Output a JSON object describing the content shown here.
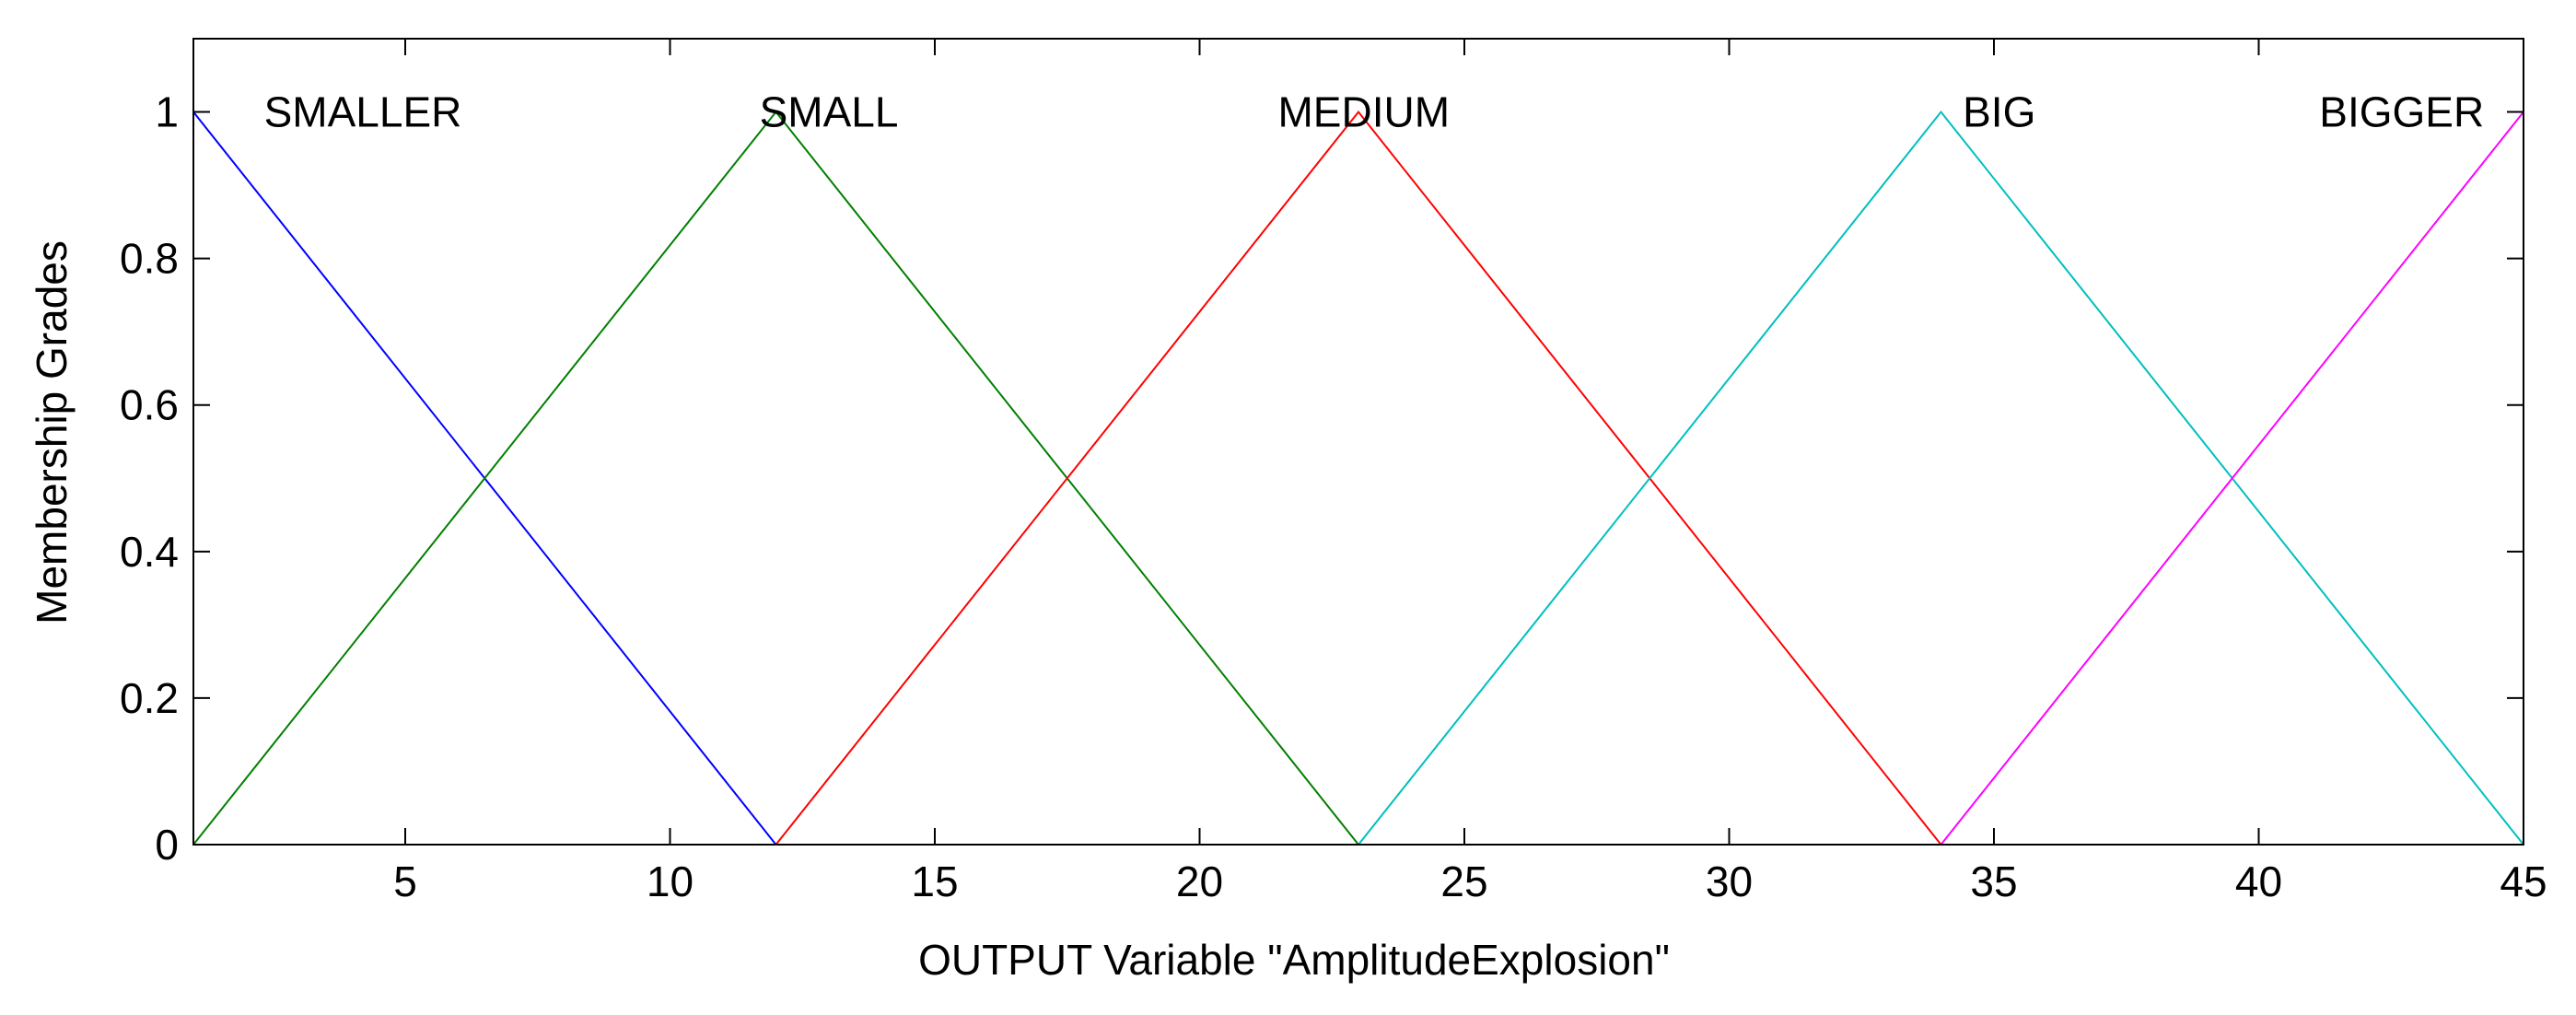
{
  "chart_data": {
    "type": "line",
    "title": "",
    "xlabel": "OUTPUT Variable \"AmplitudeExplosion\"",
    "ylabel": "Membership Grades",
    "xlim": [
      1,
      45
    ],
    "ylim": [
      0,
      1.1
    ],
    "xticks": [
      5,
      10,
      15,
      20,
      25,
      30,
      35,
      40,
      45
    ],
    "yticks": [
      0,
      0.2,
      0.4,
      0.6,
      0.8,
      1
    ],
    "ytick_labels": [
      "0",
      "0.2",
      "0.4",
      "0.6",
      "0.8",
      "1"
    ],
    "grid": false,
    "series": [
      {
        "name": "SMALLER",
        "color": "#0000ff",
        "x": [
          1,
          1,
          12,
          45
        ],
        "y": [
          0,
          1,
          0,
          0
        ],
        "label_x": 4.2
      },
      {
        "name": "SMALL",
        "color": "#008000",
        "x": [
          1,
          12,
          23,
          45
        ],
        "y": [
          0,
          1,
          0,
          0
        ],
        "label_x": 13.0
      },
      {
        "name": "MEDIUM",
        "color": "#ff0000",
        "x": [
          1,
          12,
          23,
          34,
          45
        ],
        "y": [
          0,
          0,
          1,
          0,
          0
        ],
        "label_x": 23.1
      },
      {
        "name": "BIG",
        "color": "#00bfbf",
        "x": [
          1,
          23,
          34,
          45
        ],
        "y": [
          0,
          0,
          1,
          0
        ],
        "label_x": 35.1
      },
      {
        "name": "BIGGER",
        "color": "#ff00ff",
        "x": [
          1,
          34,
          45
        ],
        "y": [
          0,
          0,
          1
        ],
        "label_x": 42.7
      }
    ]
  }
}
